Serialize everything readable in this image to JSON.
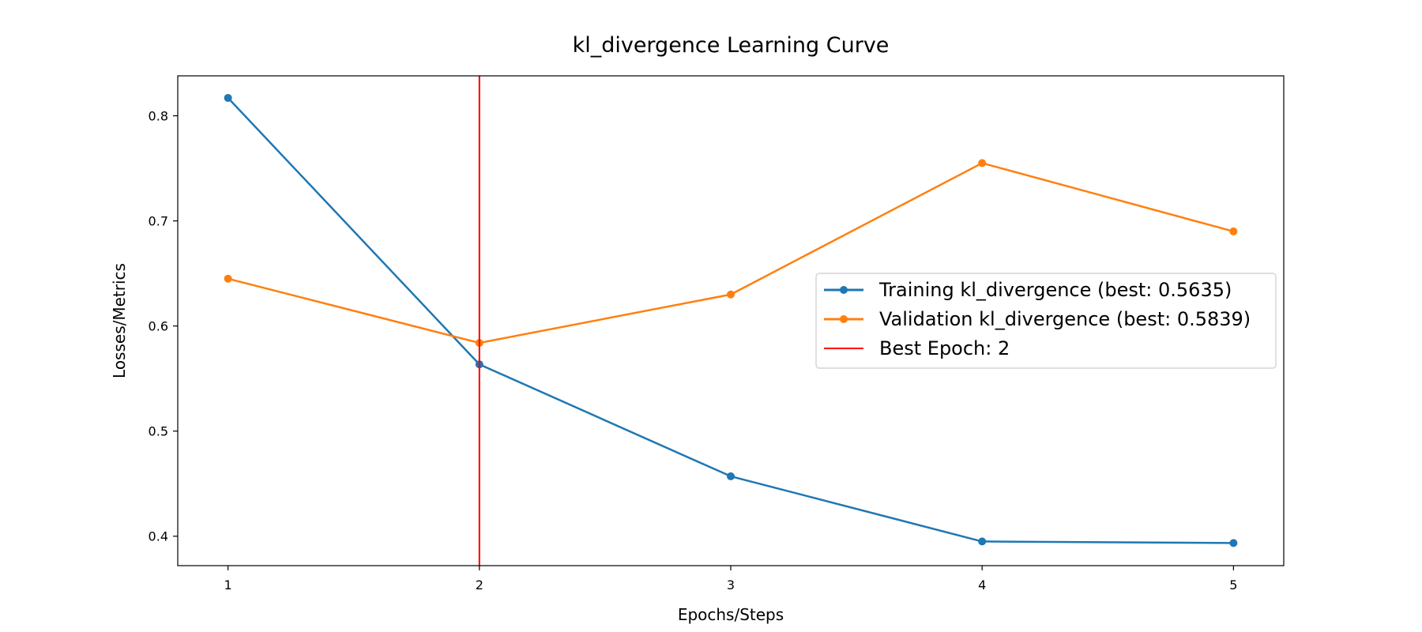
{
  "chart_data": {
    "type": "line",
    "title": "kl_divergence Learning Curve",
    "xlabel": "Epochs/Steps",
    "ylabel": "Losses/Metrics",
    "x": [
      1,
      2,
      3,
      4,
      5
    ],
    "xticks": [
      "1",
      "2",
      "3",
      "4",
      "5"
    ],
    "yticks": [
      "0.4",
      "0.5",
      "0.6",
      "0.7",
      "0.8"
    ],
    "xlim": [
      0.8,
      5.2
    ],
    "ylim": [
      0.372,
      0.838
    ],
    "grid": false,
    "legend_position": "center-right",
    "series": [
      {
        "name": "Training kl_divergence (best: 0.5635)",
        "values": [
          0.817,
          0.5635,
          0.457,
          0.395,
          0.3935
        ],
        "color": "#1f77b4",
        "marker": "circle"
      },
      {
        "name": "Validation kl_divergence (best: 0.5839)",
        "values": [
          0.645,
          0.5839,
          0.63,
          0.755,
          0.69
        ],
        "color": "#ff7f0e",
        "marker": "circle"
      }
    ],
    "vline": {
      "name": "Best Epoch: 2",
      "x": 2,
      "color": "#ff0000"
    }
  }
}
